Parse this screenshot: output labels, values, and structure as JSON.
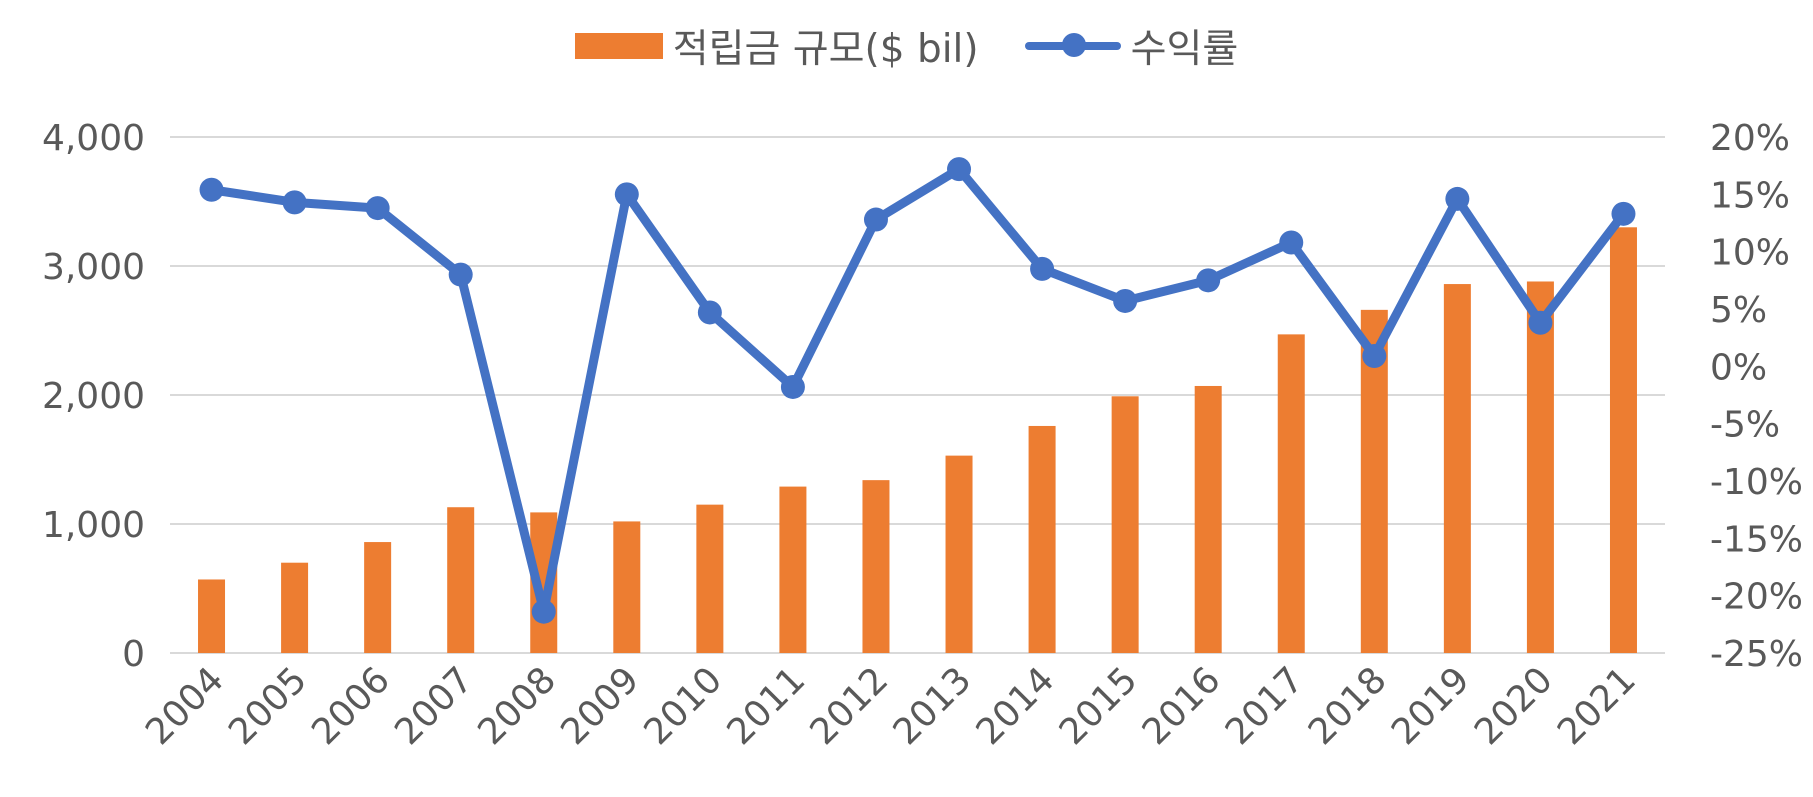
{
  "legend": {
    "bar_label": "적립금 규모($ bil)",
    "line_label": "수익률"
  },
  "colors": {
    "bar": "#ED7D31",
    "line": "#4472C4",
    "grid": "#D9D9D9",
    "text": "#595959"
  },
  "chart_data": {
    "type": "bar",
    "categories": [
      "2004",
      "2005",
      "2006",
      "2007",
      "2008",
      "2009",
      "2010",
      "2011",
      "2012",
      "2013",
      "2014",
      "2015",
      "2016",
      "2017",
      "2018",
      "2019",
      "2020",
      "2021"
    ],
    "series": [
      {
        "name": "적립금 규모($ bil)",
        "type": "bar",
        "axis": "left",
        "values": [
          570,
          700,
          860,
          1130,
          1090,
          1020,
          1150,
          1290,
          1340,
          1530,
          1760,
          1990,
          2070,
          2470,
          2660,
          2860,
          2880,
          3300
        ]
      },
      {
        "name": "수익률",
        "type": "line",
        "axis": "right",
        "values": [
          15.4,
          14.3,
          13.8,
          8.0,
          -21.4,
          15.0,
          4.7,
          -1.8,
          12.8,
          17.2,
          8.5,
          5.7,
          7.5,
          10.8,
          0.9,
          14.6,
          3.8,
          13.3
        ]
      }
    ],
    "y_left": {
      "lim": [
        0,
        4000
      ],
      "ticks": [
        "0",
        "1,000",
        "2,000",
        "3,000",
        "4,000"
      ],
      "tick_values": [
        0,
        1000,
        2000,
        3000,
        4000
      ]
    },
    "y_right": {
      "lim": [
        -25,
        20
      ],
      "ticks": [
        "-25%",
        "-20%",
        "-15%",
        "-10%",
        "-5%",
        "0%",
        "5%",
        "10%",
        "15%",
        "20%"
      ],
      "tick_values": [
        -25,
        -20,
        -15,
        -10,
        -5,
        0,
        5,
        10,
        15,
        20
      ]
    },
    "grid": true,
    "legend_position": "top-center"
  }
}
